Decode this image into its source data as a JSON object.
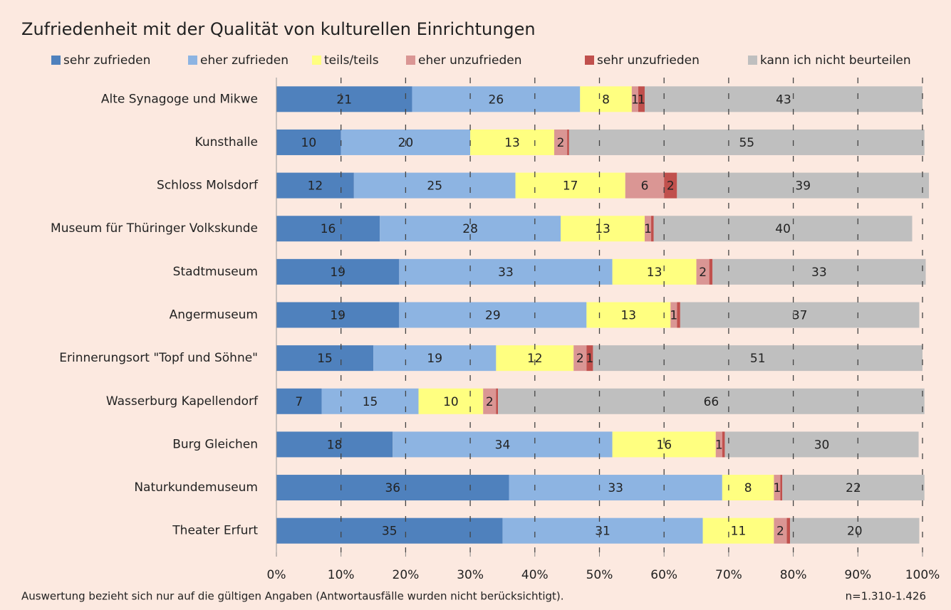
{
  "chart_data": {
    "type": "stacked_bar_horizontal",
    "title": "Zufriedenheit mit der Qualität von kulturellen Einrichtungen",
    "categories": [
      "Alte Synagoge und Mikwe",
      "Kunsthalle",
      "Schloss Molsdorf",
      "Museum für Thüringer Volkskunde",
      "Stadtmuseum",
      "Angermuseum",
      "Erinnerungsort \"Topf und Söhne\"",
      "Wasserburg Kapellendorf",
      "Burg Gleichen",
      "Naturkundemuseum",
      "Theater Erfurt"
    ],
    "series": [
      {
        "name": "sehr zufrieden",
        "color": "#4f81bd",
        "values": [
          21,
          10,
          12,
          16,
          19,
          19,
          15,
          7,
          18,
          36,
          35
        ]
      },
      {
        "name": "eher zufrieden",
        "color": "#8db4e2",
        "values": [
          26,
          20,
          25,
          28,
          33,
          29,
          19,
          15,
          34,
          33,
          31
        ]
      },
      {
        "name": "teils/teils",
        "color": "#ffff80",
        "values": [
          8,
          13,
          17,
          13,
          13,
          13,
          12,
          10,
          16,
          8,
          11
        ]
      },
      {
        "name": "eher unzufrieden",
        "color": "#da9694",
        "values": [
          1,
          2,
          6,
          1,
          2,
          1,
          2,
          2,
          1,
          1,
          2
        ]
      },
      {
        "name": "sehr unzufrieden",
        "color": "#c0504d",
        "values": [
          1,
          0.3,
          2,
          0.4,
          0.5,
          0.5,
          1,
          0.3,
          0.4,
          0.3,
          0.5
        ],
        "value_labels": [
          "1",
          null,
          "2",
          null,
          null,
          null,
          "1",
          null,
          null,
          null,
          null
        ]
      },
      {
        "name": "kann ich nicht beurteilen",
        "color": "#bfbfbf",
        "values": [
          43,
          55,
          39,
          40,
          33,
          37,
          51,
          66,
          30,
          22,
          20
        ]
      }
    ],
    "xlim": [
      0,
      100
    ],
    "xticks": [
      {
        "value": 0,
        "label": "0%"
      },
      {
        "value": 10,
        "label": "10%"
      },
      {
        "value": 20,
        "label": "20%"
      },
      {
        "value": 30,
        "label": "30%"
      },
      {
        "value": 40,
        "label": "40%"
      },
      {
        "value": 50,
        "label": "50%"
      },
      {
        "value": 60,
        "label": "60%"
      },
      {
        "value": 70,
        "label": "70%"
      },
      {
        "value": 80,
        "label": "80%"
      },
      {
        "value": 90,
        "label": "90%"
      },
      {
        "value": 100,
        "label": "100%"
      }
    ],
    "grid": true,
    "legend": "top",
    "footnote": "Auswertung bezieht sich nur auf die gültigen Angaben (Antwortausfälle wurden nicht berücksichtigt).",
    "sample_note": "n=1.310-1.426"
  }
}
